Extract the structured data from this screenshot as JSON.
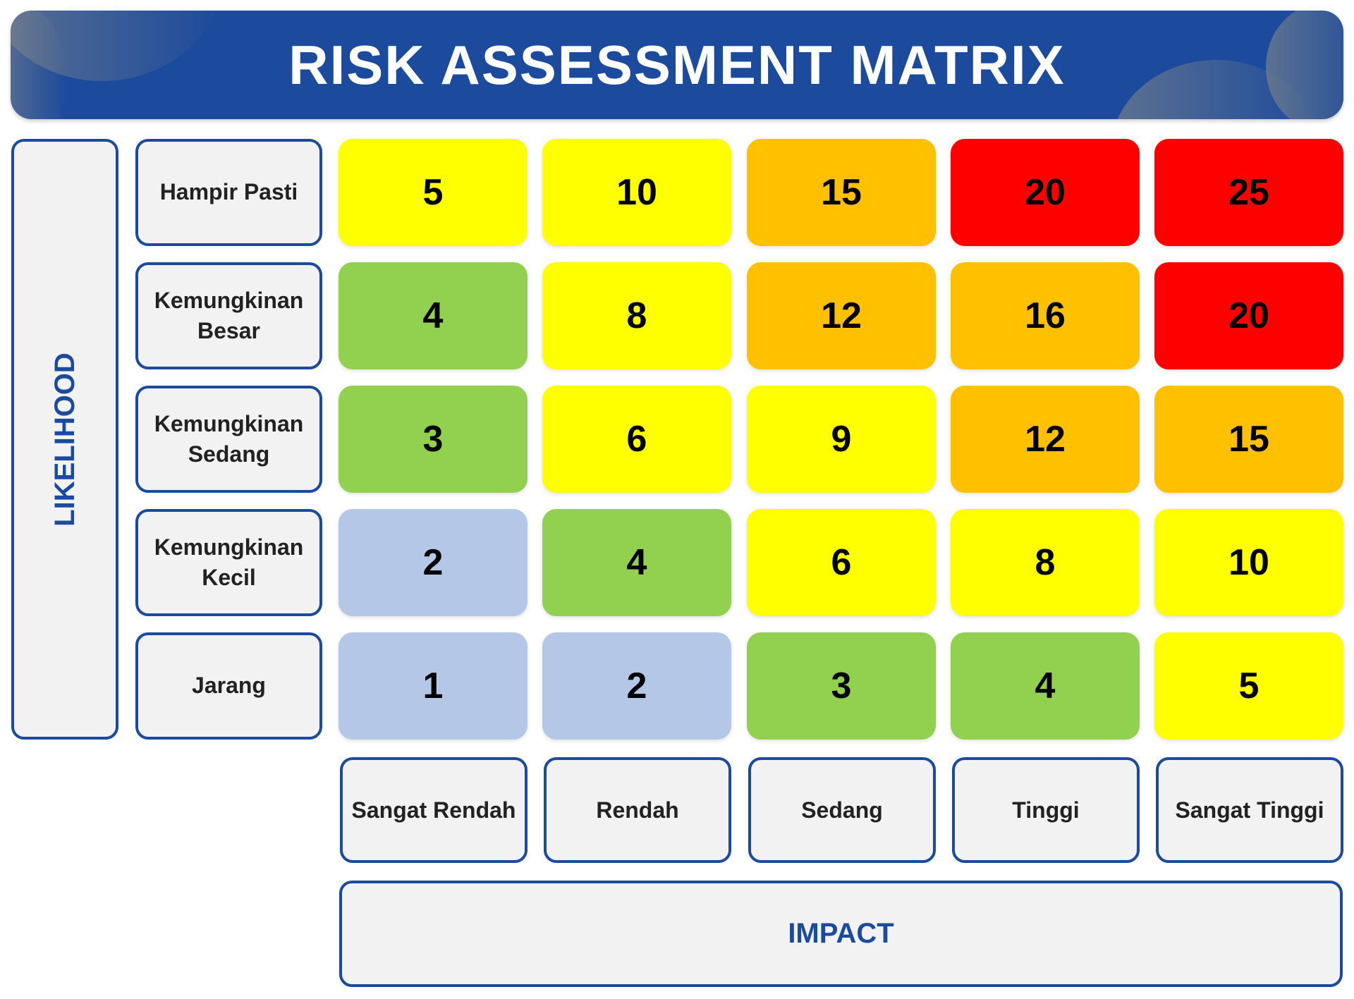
{
  "title": "RISK ASSESSMENT MATRIX",
  "likelihood_label": "LIKELIHOOD",
  "impact_label": "IMPACT",
  "likelihood_levels": [
    "Hampir Pasti",
    "Kemungkinan Besar",
    "Kemungkinan Sedang",
    "Kemungkinan Kecil",
    "Jarang"
  ],
  "impact_levels": [
    "Sangat Rendah",
    "Rendah",
    "Sedang",
    "Tinggi",
    "Sangat Tinggi"
  ],
  "colors": {
    "header": "#1C4A9C",
    "very_low": "#B4C7E7",
    "low": "#92D050",
    "medium": "#FFFF00",
    "high": "#FFC000",
    "extreme": "#FF0000"
  },
  "matrix": [
    [
      {
        "v": "5",
        "c": "medium"
      },
      {
        "v": "10",
        "c": "medium"
      },
      {
        "v": "15",
        "c": "high"
      },
      {
        "v": "20",
        "c": "extreme"
      },
      {
        "v": "25",
        "c": "extreme"
      }
    ],
    [
      {
        "v": "4",
        "c": "low"
      },
      {
        "v": "8",
        "c": "medium"
      },
      {
        "v": "12",
        "c": "high"
      },
      {
        "v": "16",
        "c": "high"
      },
      {
        "v": "20",
        "c": "extreme"
      }
    ],
    [
      {
        "v": "3",
        "c": "low"
      },
      {
        "v": "6",
        "c": "medium"
      },
      {
        "v": "9",
        "c": "medium"
      },
      {
        "v": "12",
        "c": "high"
      },
      {
        "v": "15",
        "c": "high"
      }
    ],
    [
      {
        "v": "2",
        "c": "very_low"
      },
      {
        "v": "4",
        "c": "low"
      },
      {
        "v": "6",
        "c": "medium"
      },
      {
        "v": "8",
        "c": "medium"
      },
      {
        "v": "10",
        "c": "medium"
      }
    ],
    [
      {
        "v": "1",
        "c": "very_low"
      },
      {
        "v": "2",
        "c": "very_low"
      },
      {
        "v": "3",
        "c": "low"
      },
      {
        "v": "4",
        "c": "low"
      },
      {
        "v": "5",
        "c": "medium"
      }
    ]
  ]
}
